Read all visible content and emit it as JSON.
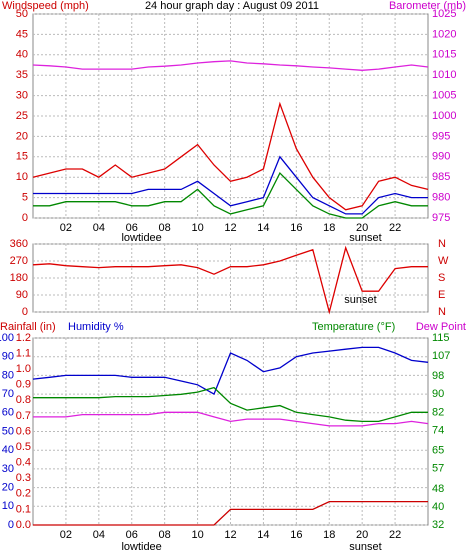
{
  "chart_data": [
    {
      "type": "line",
      "title": "24 hour graph day : August 09 2011",
      "ylabel": "Windspeed (mph)",
      "x": [
        0,
        1,
        2,
        3,
        4,
        5,
        6,
        7,
        8,
        9,
        10,
        11,
        12,
        13,
        14,
        15,
        16,
        17,
        18,
        19,
        20,
        21,
        22,
        23,
        24
      ],
      "xlim": [
        0,
        24
      ],
      "xticks": [
        {
          "value": 2,
          "label": "02"
        },
        {
          "value": 4,
          "label": "04"
        },
        {
          "value": 6,
          "label": "06"
        },
        {
          "value": 8,
          "label": "08"
        },
        {
          "value": 10,
          "label": "10"
        },
        {
          "value": 12,
          "label": "12"
        },
        {
          "value": 14,
          "label": "14"
        },
        {
          "value": 16,
          "label": "16"
        },
        {
          "value": 18,
          "label": "18"
        },
        {
          "value": 20,
          "label": "20"
        },
        {
          "value": 22,
          "label": "22"
        }
      ],
      "ylim": [
        0,
        50
      ],
      "yticks": [
        0,
        5,
        10,
        15,
        20,
        25,
        30,
        35,
        40,
        45,
        50
      ],
      "ycolor": "#cc0000",
      "y2lim": [
        975,
        1025
      ],
      "y2ticks": [
        975,
        980,
        985,
        990,
        995,
        1000,
        1005,
        1010,
        1015,
        1020,
        1025
      ],
      "y2color": "#cc00cc",
      "grid": true,
      "annotations": [
        {
          "text": "lowtidee",
          "x": 6.6
        },
        {
          "text": "sunset",
          "x": 20.2
        }
      ],
      "series": [
        {
          "name": "Barometer (mb)",
          "color": "#dd22dd",
          "axis": "y2",
          "values": [
            1012.5,
            1012.3,
            1012,
            1011.5,
            1011.5,
            1011.5,
            1011.5,
            1012,
            1012.2,
            1012.5,
            1013,
            1013.3,
            1013.5,
            1013,
            1012.8,
            1012.5,
            1012.3,
            1012,
            1011.8,
            1011.5,
            1011.2,
            1011.5,
            1012,
            1012.5,
            1012
          ]
        },
        {
          "color": "#dd0000",
          "values": [
            10,
            11,
            12,
            12,
            10,
            13,
            10,
            11,
            12,
            15,
            18,
            13,
            9,
            10,
            12,
            28,
            17,
            10,
            5,
            2,
            3,
            9,
            10,
            8,
            7
          ]
        },
        {
          "color": "#0000cc",
          "values": [
            6,
            6,
            6,
            6,
            6,
            6,
            6,
            7,
            7,
            7,
            9,
            6,
            3,
            4,
            5,
            15,
            10,
            5,
            3,
            1,
            1,
            5,
            6,
            5,
            5
          ]
        },
        {
          "color": "#008800",
          "values": [
            3,
            3,
            4,
            4,
            4,
            4,
            3,
            3,
            4,
            4,
            7,
            3,
            1,
            2,
            3,
            11,
            7,
            3,
            1,
            0,
            0,
            3,
            4,
            3,
            3
          ]
        }
      ]
    },
    {
      "type": "line",
      "x": [
        0,
        1,
        2,
        3,
        4,
        5,
        6,
        7,
        8,
        9,
        10,
        11,
        12,
        13,
        14,
        15,
        16,
        17,
        18,
        19,
        20,
        21,
        22,
        23,
        24
      ],
      "xlim": [
        0,
        24
      ],
      "xticks": [
        {
          "value": 2,
          "label": "02"
        },
        {
          "value": 4,
          "label": "04"
        },
        {
          "value": 6,
          "label": "06"
        },
        {
          "value": 8,
          "label": "08"
        },
        {
          "value": 10,
          "label": "10"
        },
        {
          "value": 12,
          "label": "12"
        },
        {
          "value": 14,
          "label": "14"
        },
        {
          "value": 16,
          "label": "16"
        },
        {
          "value": 18,
          "label": "18"
        },
        {
          "value": 20,
          "label": "20"
        },
        {
          "value": 22,
          "label": "22"
        }
      ],
      "ylim": [
        0,
        360
      ],
      "yticks": [
        0,
        90,
        180,
        270,
        360
      ],
      "ycolor": "#cc0000",
      "y2lim": [
        0,
        360
      ],
      "y2ticks": [
        {
          "value": 0,
          "label": "N"
        },
        {
          "value": 90,
          "label": "E"
        },
        {
          "value": 180,
          "label": "S"
        },
        {
          "value": 270,
          "label": "W"
        },
        {
          "value": 360,
          "label": "N"
        }
      ],
      "y2color": "#cc0000",
      "grid": true,
      "annotations": [
        {
          "text": "sunset",
          "x": 19.9
        }
      ],
      "series": [
        {
          "color": "#dd0000",
          "values": [
            250,
            255,
            245,
            240,
            235,
            240,
            240,
            240,
            245,
            250,
            235,
            200,
            240,
            240,
            250,
            270,
            300,
            330,
            0,
            340,
            110,
            110,
            230,
            240,
            240
          ]
        }
      ]
    },
    {
      "type": "line",
      "x": [
        0,
        1,
        2,
        3,
        4,
        5,
        6,
        7,
        8,
        9,
        10,
        11,
        12,
        13,
        14,
        15,
        16,
        17,
        18,
        19,
        20,
        21,
        22,
        23,
        24
      ],
      "xlim": [
        0,
        24
      ],
      "xticks": [
        {
          "value": 2,
          "label": "02"
        },
        {
          "value": 4,
          "label": "04"
        },
        {
          "value": 6,
          "label": "06"
        },
        {
          "value": 8,
          "label": "08"
        },
        {
          "value": 10,
          "label": "10"
        },
        {
          "value": 12,
          "label": "12"
        },
        {
          "value": 14,
          "label": "14"
        },
        {
          "value": 16,
          "label": "16"
        },
        {
          "value": 18,
          "label": "18"
        },
        {
          "value": 20,
          "label": "20"
        },
        {
          "value": 22,
          "label": "22"
        }
      ],
      "ylim": [
        0,
        100
      ],
      "yticks": [
        0,
        10,
        20,
        30,
        40,
        50,
        60,
        70,
        80,
        90,
        100
      ],
      "ycolor": "#0000cc",
      "y2lim": [
        32,
        115
      ],
      "y2ticks": [
        32,
        40,
        48,
        57,
        65,
        74,
        82,
        90,
        98,
        107,
        115
      ],
      "y2color": "#008800",
      "y3lim": [
        0,
        1.2
      ],
      "y3ticks": [
        {
          "value": 0,
          "label": "0.0"
        },
        0.1,
        0.2,
        0.3,
        0.4,
        0.5,
        0.6,
        0.7,
        0.8,
        0.9,
        {
          "value": 1,
          "label": "1.0"
        },
        1.1,
        1.2
      ],
      "y3color": "#cc0000",
      "grid": true,
      "annotations": [
        {
          "text": "lowtidee",
          "x": 6.6
        },
        {
          "text": "sunset",
          "x": 20.2
        }
      ],
      "series": [
        {
          "name": "Rainfall (in)",
          "color": "#cc0000",
          "axis": "y3",
          "values": [
            0,
            0,
            0,
            0,
            0,
            0,
            0,
            0,
            0,
            0,
            0,
            0,
            0.1,
            0.1,
            0.1,
            0.1,
            0.1,
            0.1,
            0.15,
            0.15,
            0.15,
            0.15,
            0.15,
            0.15,
            0.15
          ]
        },
        {
          "name": "Humidity %",
          "color": "#0000cc",
          "values": [
            78,
            79,
            80,
            80,
            80,
            80,
            79,
            79,
            79,
            77,
            75,
            70,
            92,
            88,
            82,
            84,
            90,
            92,
            93,
            94,
            95,
            95,
            92,
            88,
            87
          ]
        },
        {
          "name": "Temperature (°F)",
          "color": "#008800",
          "axis": "y2",
          "values": [
            88.5,
            88.5,
            88.5,
            88.5,
            88.5,
            89,
            89,
            89,
            89.5,
            90,
            91,
            93,
            86,
            83,
            84,
            85,
            82,
            81,
            80,
            78.5,
            78,
            78,
            80,
            82,
            82
          ]
        },
        {
          "name": "Dew Point",
          "color": "#dd22dd",
          "axis": "y2",
          "values": [
            80,
            80,
            80,
            81,
            81,
            81,
            81,
            81,
            82,
            82,
            82,
            80,
            78,
            79,
            79,
            79,
            78,
            77,
            76,
            76,
            76,
            77,
            77,
            78,
            77
          ]
        }
      ]
    }
  ]
}
